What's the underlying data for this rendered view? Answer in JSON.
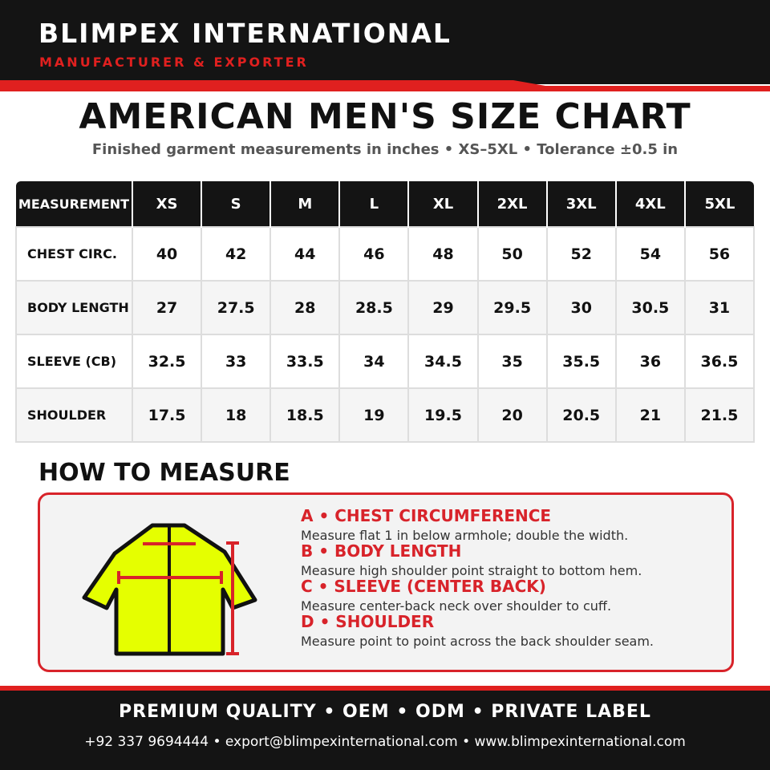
{
  "header": {
    "brand": "BLIMPEX INTERNATIONAL",
    "tagline": "MANUFACTURER & EXPORTER"
  },
  "title": "AMERICAN MEN'S SIZE CHART",
  "subtitle": "Finished garment measurements in inches • XS–5XL • Tolerance ±0.5 in",
  "table": {
    "columns": [
      "MEASUREMENT",
      "XS",
      "S",
      "M",
      "L",
      "XL",
      "2XL",
      "3XL",
      "4XL",
      "5XL"
    ],
    "rows": [
      [
        "CHEST CIRC.",
        40,
        42,
        44,
        46,
        48,
        50,
        52,
        54,
        56
      ],
      [
        "BODY LENGTH",
        27,
        27.5,
        28,
        28.5,
        29,
        29.5,
        30,
        30.5,
        31
      ],
      [
        "SLEEVE (CB)",
        32.5,
        33,
        33.5,
        34,
        34.5,
        35,
        35.5,
        36,
        36.5
      ],
      [
        "SHOULDER",
        17.5,
        18,
        18.5,
        19,
        19.5,
        20,
        20.5,
        21,
        21.5
      ]
    ]
  },
  "how_to_measure": {
    "heading": "HOW TO MEASURE",
    "items": [
      {
        "label": "A • CHEST CIRCUMFERENCE",
        "text": "Measure flat 1 in below armhole; double the width."
      },
      {
        "label": "B • BODY LENGTH",
        "text": "Measure high shoulder point straight to bottom hem."
      },
      {
        "label": "C • SLEEVE (CENTER BACK)",
        "text": "Measure center-back neck over shoulder to cuff."
      },
      {
        "label": "D • SHOULDER",
        "text": "Measure point to point across the back shoulder seam."
      }
    ]
  },
  "footer": {
    "slogan": "PREMIUM QUALITY • OEM • ODM • PRIVATE LABEL",
    "contact": "+92 337 9694444 • export@blimpexinternational.com • www.blimpexinternational.com"
  }
}
